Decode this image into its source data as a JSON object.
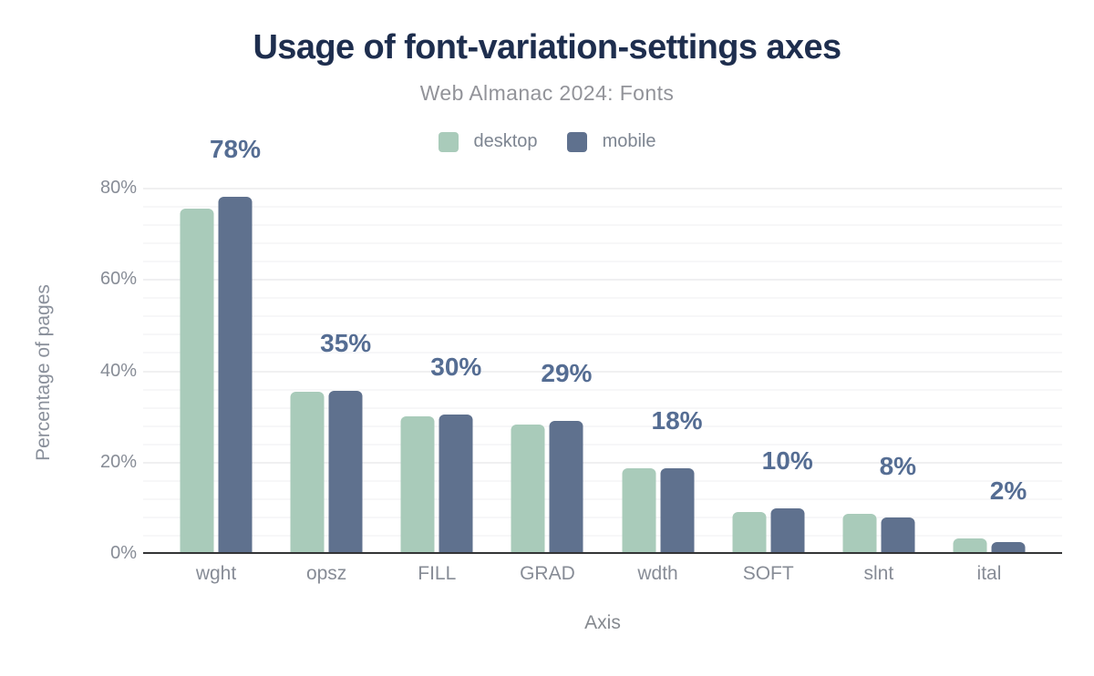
{
  "page": {
    "background": "#ffffff"
  },
  "chart_data": {
    "type": "bar",
    "title": "Usage of font-variation-settings axes",
    "subtitle": "Web Almanac 2024: Fonts",
    "xlabel": "Axis",
    "ylabel": "Percentage of pages",
    "categories": [
      "wght",
      "opsz",
      "FILL",
      "GRAD",
      "wdth",
      "SOFT",
      "slnt",
      "ital"
    ],
    "series": [
      {
        "name": "desktop",
        "color": "#a9cbba",
        "values": [
          75.2,
          35.2,
          29.8,
          27.9,
          18.3,
          8.8,
          8.4,
          3.1
        ]
      },
      {
        "name": "mobile",
        "color": "#5f718e",
        "values": [
          77.8,
          35.3,
          30.2,
          28.7,
          18.4,
          9.6,
          7.5,
          2.3
        ]
      }
    ],
    "annotations": [
      "78%",
      "35%",
      "30%",
      "29%",
      "18%",
      "10%",
      "8%",
      "2%"
    ],
    "ylim": [
      0,
      80
    ],
    "yticks": [
      {
        "label": "0%",
        "value": 0
      },
      {
        "label": "20%",
        "value": 20
      },
      {
        "label": "40%",
        "value": 40
      },
      {
        "label": "60%",
        "value": 60
      },
      {
        "label": "80%",
        "value": 80
      }
    ],
    "grid": "horizontal, minor every 4%, major every 20%",
    "legend_position": "top-center",
    "annotation_color": "#556d93",
    "axis_line_color": "#333436",
    "title_color": "#1e2e4e"
  }
}
